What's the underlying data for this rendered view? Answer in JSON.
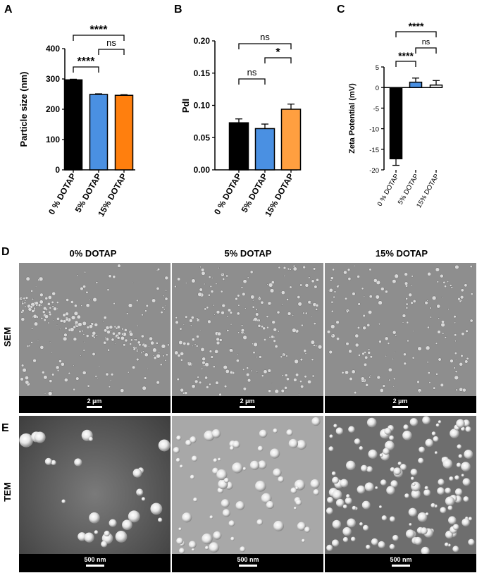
{
  "panel_labels": {
    "a": "A",
    "b": "B",
    "c": "C",
    "d": "D",
    "e": "E"
  },
  "chart_data": [
    {
      "type": "bar",
      "panel": "A",
      "categories": [
        "0 % DOTAP",
        "5% DOTAP",
        "15% DOTAP"
      ],
      "values": [
        297,
        249,
        246
      ],
      "errors": [
        2,
        2,
        2
      ],
      "colors": [
        "#000000",
        "#4a90e2",
        "#ff7f0e"
      ],
      "ylabel": "Particle size (nm)",
      "ylim": [
        0,
        400
      ],
      "yticks": [
        "0",
        "100",
        "200",
        "300",
        "400"
      ],
      "significance": [
        {
          "from": 0,
          "to": 1,
          "label": "****"
        },
        {
          "from": 1,
          "to": 2,
          "label": "ns"
        },
        {
          "from": 0,
          "to": 2,
          "label": "****"
        }
      ]
    },
    {
      "type": "bar",
      "panel": "B",
      "categories": [
        "0 % DOTAP",
        "5% DOTAP",
        "15% DOTAP"
      ],
      "values": [
        0.073,
        0.064,
        0.094
      ],
      "errors": [
        0.006,
        0.007,
        0.008
      ],
      "colors": [
        "#000000",
        "#4a90e2",
        "#ff9f40"
      ],
      "ylabel": "PdI",
      "ylim": [
        0,
        0.2
      ],
      "yticks": [
        "0.00",
        "0.05",
        "0.10",
        "0.15",
        "0.20"
      ],
      "significance": [
        {
          "from": 0,
          "to": 1,
          "label": "ns"
        },
        {
          "from": 1,
          "to": 2,
          "label": "*"
        },
        {
          "from": 0,
          "to": 2,
          "label": "ns"
        }
      ]
    },
    {
      "type": "bar",
      "panel": "C",
      "categories": [
        "0 % DOTAP",
        "5% DOTAP",
        "15% DOTAP"
      ],
      "values": [
        -17.3,
        1.3,
        0.6
      ],
      "errors": [
        1.6,
        1.0,
        1.1
      ],
      "colors": [
        "#000000",
        "#4a90e2",
        "#ffffff"
      ],
      "ylabel": "Zeta Potential (mV)",
      "ylim": [
        -20,
        5
      ],
      "yticks": [
        "5",
        "0",
        "-5",
        "-10",
        "-15",
        "-20"
      ],
      "significance": [
        {
          "from": 0,
          "to": 1,
          "label": "****"
        },
        {
          "from": 1,
          "to": 2,
          "label": "ns"
        },
        {
          "from": 0,
          "to": 2,
          "label": "****"
        }
      ]
    }
  ],
  "micrographs": {
    "columns": [
      "0% DOTAP",
      "5% DOTAP",
      "15% DOTAP"
    ],
    "rows": [
      "SEM",
      "TEM"
    ],
    "sem_scale": "2 µm",
    "tem_scale": "500 nm"
  }
}
